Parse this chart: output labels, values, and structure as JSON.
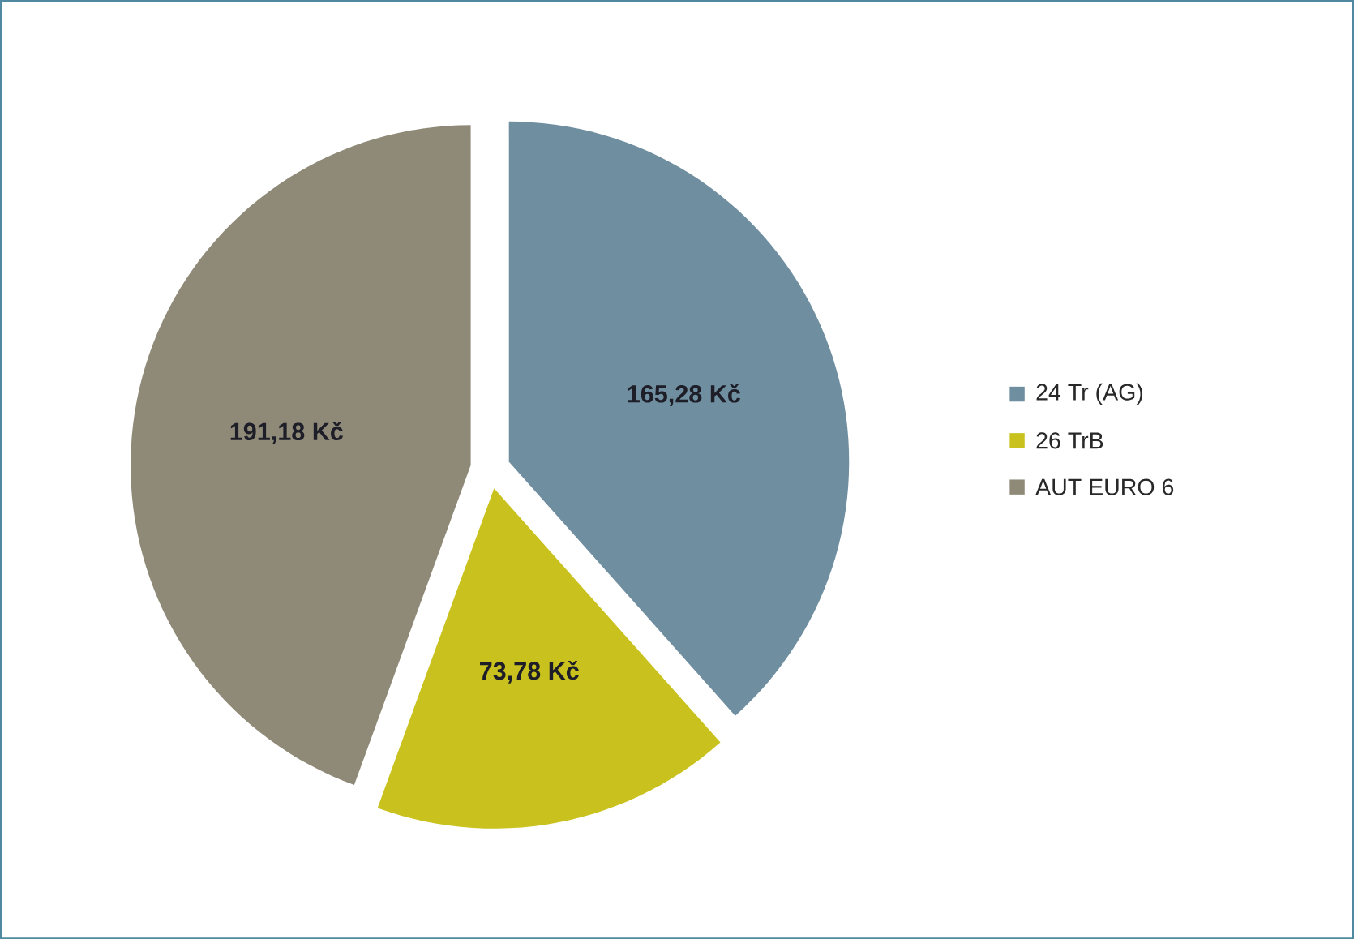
{
  "chart_data": {
    "type": "pie",
    "categories": [
      "24 Tr (AG)",
      "26 TrB",
      "AUT EURO 6"
    ],
    "values": [
      165.28,
      73.78,
      191.18
    ],
    "colors": [
      "#6f8ea0",
      "#c9c21e",
      "#8f8a78"
    ],
    "value_labels": [
      "165,28 Kč",
      "73,78 Kč",
      "191,18 Kč"
    ],
    "legend": "right"
  }
}
